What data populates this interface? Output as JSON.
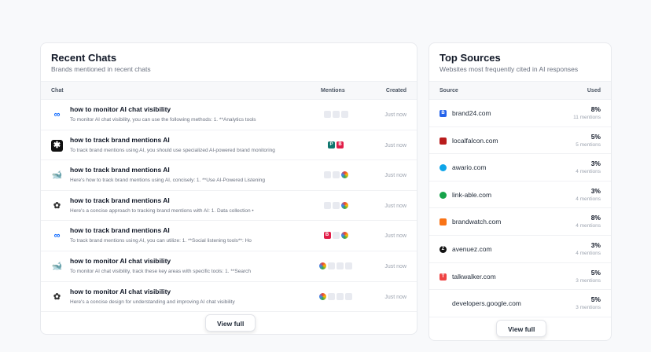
{
  "recent_chats": {
    "title": "Recent Chats",
    "subtitle": "Brands mentioned in recent chats",
    "columns": [
      "Chat",
      "Mentions",
      "Created"
    ],
    "rows": [
      {
        "model": "meta-icon",
        "title": "how to monitor AI chat visibility",
        "preview": "To monitor AI chat visibility, you can use the following methods: 1. **Analytics tools",
        "mentions": [
          "blank",
          "blank",
          "blank"
        ],
        "created": "Just now"
      },
      {
        "model": "perplexity-icon",
        "title": "how to track brand mentions AI",
        "preview": "To track brand mentions using AI, you should use specialized AI-powered brand monitoring",
        "mentions": [
          "teal",
          "red"
        ],
        "created": "Just now"
      },
      {
        "model": "deepseek-icon",
        "title": "how to track brand mentions AI",
        "preview": "Here's how to track brand mentions using AI, concisely: 1. **Use AI-Powered Listening",
        "mentions": [
          "blank",
          "blank",
          "circ"
        ],
        "created": "Just now"
      },
      {
        "model": "openai-icon",
        "title": "how to track brand mentions AI",
        "preview": "Here's a concise approach to tracking brand mentions with AI: 1. Data collection •",
        "mentions": [
          "blank",
          "blank",
          "circ"
        ],
        "created": "Just now"
      },
      {
        "model": "meta-icon",
        "title": "how to track brand mentions AI",
        "preview": "To track brand mentions using AI, you can utilize: 1. **Social listening tools**: Ho",
        "mentions": [
          "red",
          "blank",
          "circ"
        ],
        "created": "Just now"
      },
      {
        "model": "deepseek-icon",
        "title": "how to monitor AI chat visibility",
        "preview": "To monitor AI chat visibility, track these key areas with specific tools: 1. **Search",
        "mentions": [
          "circ",
          "blank",
          "blank",
          "blank"
        ],
        "created": "Just now"
      },
      {
        "model": "openai-icon",
        "title": "how to monitor AI chat visibility",
        "preview": "Here's a concise design for understanding and improving AI chat visibility",
        "mentions": [
          "circ",
          "blank",
          "blank",
          "blank"
        ],
        "created": "Just now"
      }
    ],
    "view_full": "View full"
  },
  "top_sources": {
    "title": "Top Sources",
    "subtitle": "Websites most frequently cited in AI responses",
    "columns": [
      "Source",
      "Used"
    ],
    "rows": [
      {
        "name": "brand24.com",
        "pct": "8%",
        "mentions": "11 mentions",
        "color": "#2563eb",
        "glyph": "B"
      },
      {
        "name": "localfalcon.com",
        "pct": "5%",
        "mentions": "5 mentions",
        "color": "#b91c1c",
        "glyph": ""
      },
      {
        "name": "awario.com",
        "pct": "3%",
        "mentions": "4 mentions",
        "color": "#0ea5e9",
        "glyph": ""
      },
      {
        "name": "link-able.com",
        "pct": "3%",
        "mentions": "4 mentions",
        "color": "#16a34a",
        "glyph": ""
      },
      {
        "name": "brandwatch.com",
        "pct": "8%",
        "mentions": "4 mentions",
        "color": "#f97316",
        "glyph": ""
      },
      {
        "name": "avenuez.com",
        "pct": "3%",
        "mentions": "4 mentions",
        "color": "#111111",
        "glyph": "Z"
      },
      {
        "name": "talkwalker.com",
        "pct": "5%",
        "mentions": "3 mentions",
        "color": "#ef4444",
        "glyph": "T"
      },
      {
        "name": "developers.google.com",
        "pct": "5%",
        "mentions": "3 mentions",
        "color": "#ffffff",
        "glyph": ""
      }
    ],
    "view_full": "View full"
  }
}
